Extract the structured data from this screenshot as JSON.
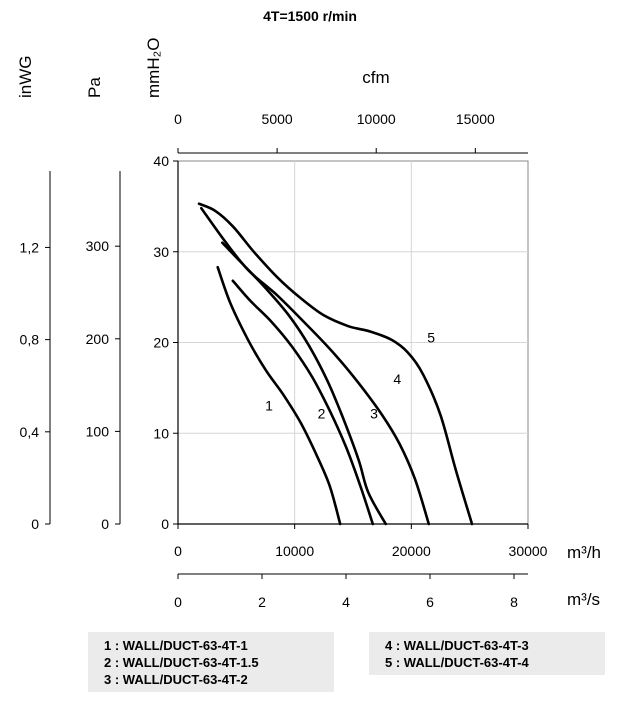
{
  "chart_data": {
    "type": "line",
    "title": "4T=1500  r/min",
    "x_primary": {
      "unit": "m³/h",
      "range": [
        0,
        30000
      ],
      "ticks": [
        "0",
        "10000",
        "20000",
        "30000"
      ]
    },
    "x_secondary_cfm": {
      "unit": "cfm",
      "range": [
        0,
        17657
      ],
      "ticks": [
        "0",
        "5000",
        "10000",
        "15000"
      ]
    },
    "x_secondary_m3s": {
      "unit": "m³/s",
      "range": [
        0,
        8.333
      ],
      "ticks": [
        "0",
        "2",
        "4",
        "6",
        "8"
      ]
    },
    "y_primary": {
      "unit": "mmH₂O",
      "range": [
        0,
        40
      ],
      "ticks": [
        "0",
        "10",
        "20",
        "30",
        "40"
      ]
    },
    "y_secondary_pa": {
      "unit": "Pa",
      "range": [
        0,
        392
      ],
      "ticks": [
        "0",
        "100",
        "200",
        "300"
      ]
    },
    "y_secondary_inwg": {
      "unit": "inWG",
      "range": [
        0,
        1.575
      ],
      "ticks": [
        "0",
        "0,4",
        "0,8",
        "1,2"
      ]
    },
    "grid": true,
    "series": [
      {
        "name": "1",
        "points": [
          [
            3400,
            28.3
          ],
          [
            4500,
            24.3
          ],
          [
            6000,
            20.3
          ],
          [
            7500,
            17.0
          ],
          [
            9000,
            14.3
          ],
          [
            10500,
            11.2
          ],
          [
            11800,
            7.8
          ],
          [
            13000,
            4.2
          ],
          [
            13900,
            0
          ]
        ]
      },
      {
        "name": "2",
        "points": [
          [
            4700,
            26.8
          ],
          [
            6200,
            24.6
          ],
          [
            8000,
            22.3
          ],
          [
            9800,
            19.5
          ],
          [
            11500,
            16.2
          ],
          [
            13000,
            12.5
          ],
          [
            14400,
            8.5
          ],
          [
            15600,
            4.3
          ],
          [
            16700,
            0
          ]
        ]
      },
      {
        "name": "3",
        "points": [
          [
            3800,
            31.0
          ],
          [
            5500,
            28.7
          ],
          [
            7500,
            26.0
          ],
          [
            9500,
            23.0
          ],
          [
            11200,
            19.7
          ],
          [
            12800,
            15.8
          ],
          [
            14200,
            11.5
          ],
          [
            15500,
            7.0
          ],
          [
            16300,
            3.5
          ],
          [
            17800,
            0
          ]
        ]
      },
      {
        "name": "4",
        "points": [
          [
            2000,
            34.8
          ],
          [
            4000,
            31.2
          ],
          [
            6000,
            28.0
          ],
          [
            8500,
            25.2
          ],
          [
            11000,
            22.0
          ],
          [
            13500,
            18.6
          ],
          [
            15500,
            15.5
          ],
          [
            17500,
            12.0
          ],
          [
            19000,
            8.8
          ],
          [
            20300,
            5.0
          ],
          [
            21500,
            0
          ]
        ]
      },
      {
        "name": "5",
        "points": [
          [
            1800,
            35.3
          ],
          [
            3200,
            34.5
          ],
          [
            4700,
            32.8
          ],
          [
            6500,
            30.0
          ],
          [
            8500,
            27.2
          ],
          [
            10500,
            24.9
          ],
          [
            12500,
            23.0
          ],
          [
            14600,
            21.8
          ],
          [
            16500,
            21.2
          ],
          [
            18300,
            20.3
          ],
          [
            19700,
            18.9
          ],
          [
            21000,
            16.5
          ],
          [
            22500,
            12.0
          ],
          [
            23800,
            6.0
          ],
          [
            25200,
            0
          ]
        ]
      }
    ],
    "curve_labels": [
      {
        "text": "1",
        "x": 7800,
        "y": 12.5
      },
      {
        "text": "2",
        "x": 12300,
        "y": 11.6
      },
      {
        "text": "3",
        "x": 16800,
        "y": 11.6
      },
      {
        "text": "4",
        "x": 18800,
        "y": 15.4
      },
      {
        "text": "5",
        "x": 21700,
        "y": 20.0
      }
    ],
    "legend": {
      "left": [
        "1 : WALL/DUCT-63-4T-1",
        "2 : WALL/DUCT-63-4T-1.5",
        "3 : WALL/DUCT-63-4T-2"
      ],
      "right": [
        "4 : WALL/DUCT-63-4T-3",
        "5 : WALL/DUCT-63-4T-4"
      ]
    }
  }
}
